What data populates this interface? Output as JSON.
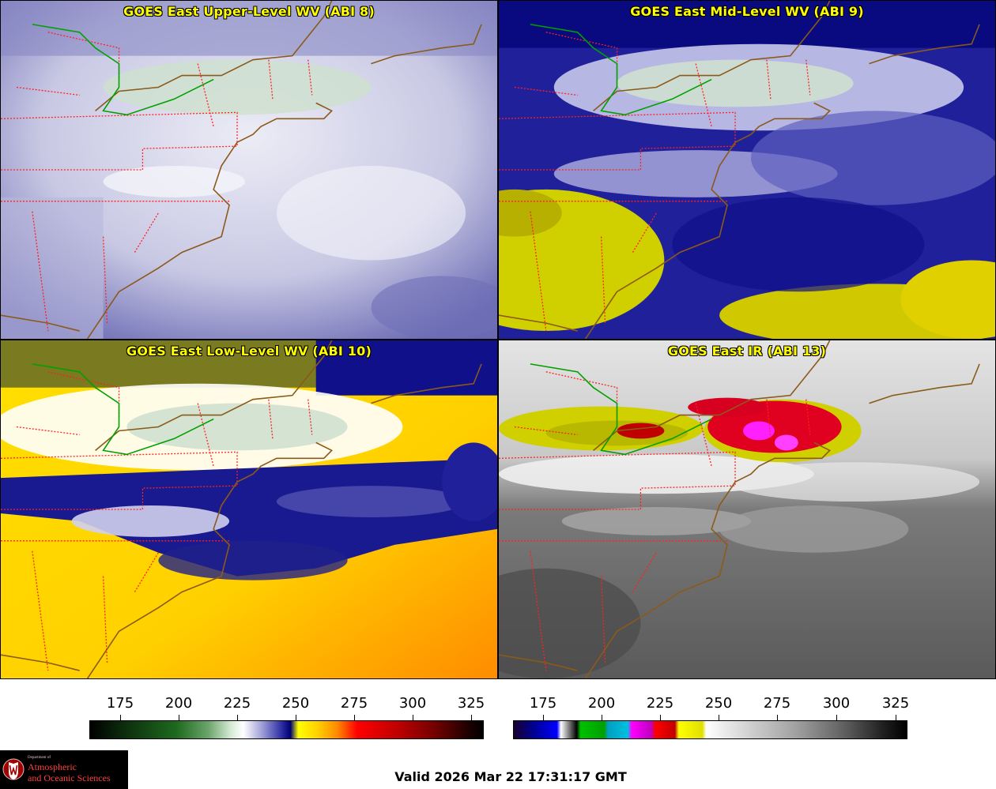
{
  "panels": [
    {
      "title": "GOES East Upper-Level WV (ABI 8)"
    },
    {
      "title": "GOES East Mid-Level WV (ABI 9)"
    },
    {
      "title": "GOES East Low-Level WV (ABI 10)"
    },
    {
      "title": "GOES East IR (ABI 13)"
    }
  ],
  "colorbars": {
    "left": {
      "ticks": [
        "175",
        "200",
        "225",
        "250",
        "275",
        "300",
        "325"
      ]
    },
    "right": {
      "ticks": [
        "175",
        "200",
        "225",
        "250",
        "275",
        "300",
        "325"
      ]
    }
  },
  "valid_time": "Valid 2026 Mar 22 17:31:17 GMT",
  "logo": {
    "dept": "Department of",
    "line1": "Atmospheric",
    "line2": "and Oceanic Sciences"
  },
  "colors": {
    "title_text": "#ffff00",
    "state_borders": "#ff2020",
    "coastline": "#8b5a1a",
    "international_border": "#00a000"
  }
}
